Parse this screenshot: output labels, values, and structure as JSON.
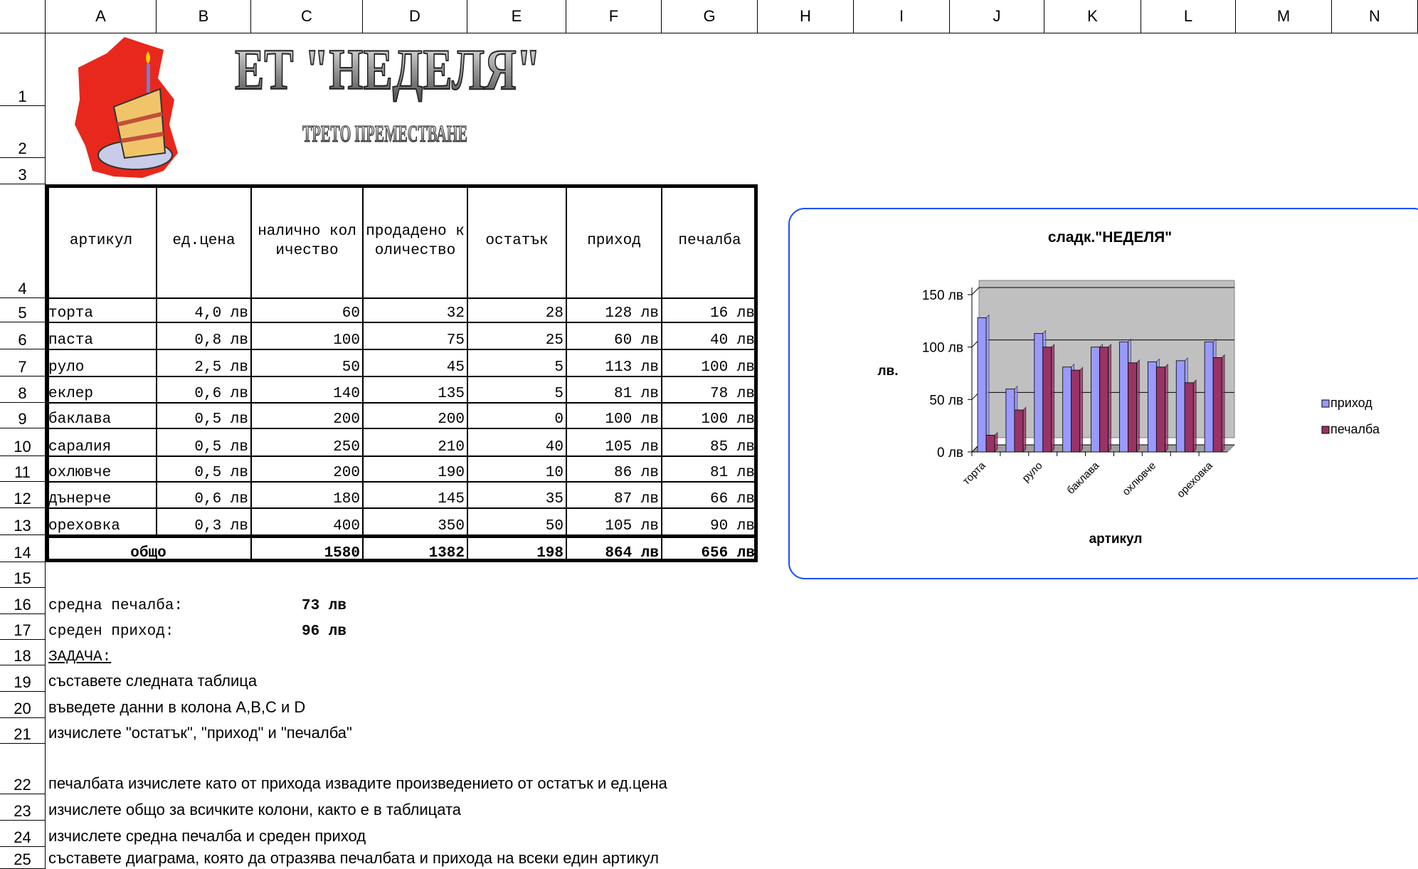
{
  "columns": [
    "A",
    "B",
    "C",
    "D",
    "E",
    "F",
    "G",
    "H",
    "I",
    "J",
    "K",
    "L",
    "M",
    "N"
  ],
  "rows": [
    "1",
    "2",
    "3",
    "4",
    "5",
    "6",
    "7",
    "8",
    "9",
    "10",
    "11",
    "12",
    "13",
    "14",
    "15",
    "16",
    "17",
    "18",
    "19",
    "20",
    "21",
    "22",
    "23",
    "24",
    "25"
  ],
  "header": {
    "title": "ЕТ \"НЕДЕЛЯ\"",
    "subtitle": "ТРЕТО ПРЕМЕСТВАНЕ"
  },
  "table": {
    "header": [
      "артикул",
      "ед.цена",
      "налично количество",
      "продадено количество",
      "остатък",
      "приход",
      "печалба"
    ],
    "rows": [
      [
        "торта",
        "4,0 лв",
        "60",
        "32",
        "28",
        "128 лв",
        "16 лв"
      ],
      [
        "паста",
        "0,8 лв",
        "100",
        "75",
        "25",
        "60 лв",
        "40 лв"
      ],
      [
        "руло",
        "2,5 лв",
        "50",
        "45",
        "5",
        "113 лв",
        "100 лв"
      ],
      [
        "еклер",
        "0,6 лв",
        "140",
        "135",
        "5",
        "81 лв",
        "78 лв"
      ],
      [
        "баклава",
        "0,5 лв",
        "200",
        "200",
        "0",
        "100 лв",
        "100 лв"
      ],
      [
        "саралия",
        "0,5 лв",
        "250",
        "210",
        "40",
        "105 лв",
        "85 лв"
      ],
      [
        "охлювче",
        "0,5 лв",
        "200",
        "190",
        "10",
        "86 лв",
        "81 лв"
      ],
      [
        "дънерче",
        "0,6 лв",
        "180",
        "145",
        "35",
        "87 лв",
        "66 лв"
      ],
      [
        "ореховка",
        "0,3 лв",
        "400",
        "350",
        "50",
        "105 лв",
        "90 лв"
      ]
    ],
    "total": [
      "общо",
      "1580",
      "1382",
      "198",
      "864 лв",
      "656 лв"
    ]
  },
  "summary": [
    {
      "label": "средна печалба:",
      "value": "73 лв"
    },
    {
      "label": "среден приход:",
      "value": "96 лв"
    }
  ],
  "task": {
    "title": "ЗАДАЧА:",
    "items": [
      "съставете следната таблица",
      "въведете данни в колона А,В,С и D",
      "изчислете \"остатък\", \"приход\" и \"печалба\"",
      "печалбата изчислете като от прихода извадите произведението от остатък и ед.цена",
      "изчислете общо за всичките колони, както е в таблицата",
      "изчислете средна печалба и среден приход",
      "съставете диаграма, която да отразява печалбата и прихода на всеки един артикул"
    ]
  },
  "chart_data": {
    "type": "bar",
    "title": "сладк.\"НЕДЕЛЯ\"",
    "x_label": "артикул",
    "y_label": "лв.",
    "categories": [
      "торта",
      null,
      "руло",
      null,
      "баклава",
      null,
      "охлювче",
      null,
      "ореховка"
    ],
    "series": [
      {
        "name": "приход",
        "color": "#9999ff",
        "values": [
          128,
          60,
          113,
          81,
          100,
          105,
          86,
          87,
          105
        ]
      },
      {
        "name": "печалба",
        "color": "#993366",
        "values": [
          16,
          40,
          100,
          78,
          100,
          85,
          81,
          66,
          90
        ]
      }
    ],
    "ylim": [
      0,
      150
    ],
    "yticks": [
      {
        "value": 0,
        "label": "0 лв"
      },
      {
        "value": 50,
        "label": "50 лв"
      },
      {
        "value": 100,
        "label": "100 лв"
      },
      {
        "value": 150,
        "label": "150 лв"
      }
    ],
    "grid": true,
    "legend": "right"
  }
}
